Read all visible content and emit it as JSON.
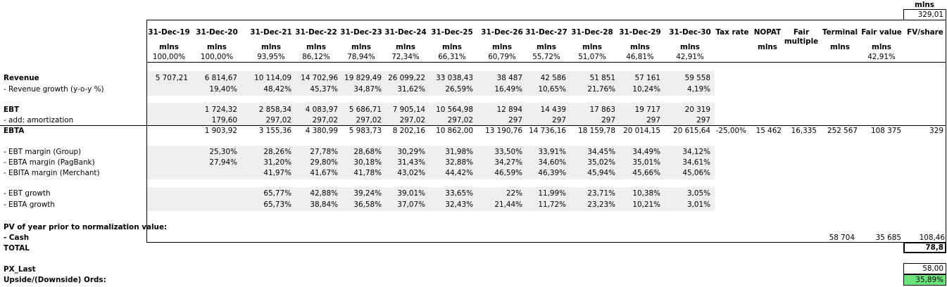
{
  "top": {
    "unit": "mlns",
    "value": "329,01"
  },
  "columns": [
    {
      "date": "31-Dec-19",
      "unit": "mlns",
      "pct": "100,00%"
    },
    {
      "date": "31-Dec-20",
      "unit": "mlns",
      "pct": "100,00%"
    },
    {
      "date": "31-Dec-21",
      "unit": "mlns",
      "pct": "93,95%"
    },
    {
      "date": "31-Dec-22",
      "unit": "mlns",
      "pct": "86,12%"
    },
    {
      "date": "31-Dec-23",
      "unit": "mlns",
      "pct": "78,94%"
    },
    {
      "date": "31-Dec-24",
      "unit": "mlns",
      "pct": "72,34%"
    },
    {
      "date": "31-Dec-25",
      "unit": "mlns",
      "pct": "66,31%"
    },
    {
      "date": "31-Dec-26",
      "unit": "mlns",
      "pct": "60,79%"
    },
    {
      "date": "31-Dec-27",
      "unit": "mlns",
      "pct": "55,72%"
    },
    {
      "date": "31-Dec-28",
      "unit": "mlns",
      "pct": "51,07%"
    },
    {
      "date": "31-Dec-29",
      "unit": "mlns",
      "pct": "46,81%"
    },
    {
      "date": "31-Dec-30",
      "unit": "mlns",
      "pct": "42,91%"
    }
  ],
  "extra_headers": {
    "tax_rate": "Tax rate",
    "nopat": "NOPAT",
    "nopat_unit": "mlns",
    "fair_multiple_1": "Fair",
    "fair_multiple_2": "multiple",
    "terminal": "Terminal",
    "terminal_unit": "mlns",
    "fair_value": "Fair value",
    "fair_value_unit": "mlns",
    "fair_value_pct": "42,91%",
    "fv_share": "FV/share"
  },
  "rows": {
    "revenue": {
      "label": "Revenue",
      "values": [
        "5 707,21",
        "6 814,67",
        "10 114,09",
        "14 702,96",
        "19 829,49",
        "26 099,22",
        "33 038,43",
        "38 487",
        "42 586",
        "51 851",
        "57 161",
        "59 558"
      ]
    },
    "revenue_growth": {
      "label": "- Revenue growth (y-o-y %)",
      "values": [
        "",
        "19,40%",
        "48,42%",
        "45,37%",
        "34,87%",
        "31,62%",
        "26,59%",
        "16,49%",
        "10,65%",
        "21,76%",
        "10,24%",
        "4,19%"
      ]
    },
    "ebt": {
      "label": "EBT",
      "values": [
        "",
        "1 724,32",
        "2 858,34",
        "4 083,97",
        "5 686,71",
        "7 905,14",
        "10 564,98",
        "12 894",
        "14 439",
        "17 863",
        "19 717",
        "20 319"
      ]
    },
    "amortization": {
      "label": "- add: amortization",
      "values": [
        "",
        "179,60",
        "297,02",
        "297,02",
        "297,02",
        "297,02",
        "297,02",
        "297",
        "297",
        "297",
        "297",
        "297"
      ]
    },
    "ebta": {
      "label": "EBTA",
      "values": [
        "",
        "1 903,92",
        "3 155,36",
        "4 380,99",
        "5 983,73",
        "8 202,16",
        "10 862,00",
        "13 190,76",
        "14 736,16",
        "18 159,78",
        "20 014,15",
        "20 615,64"
      ],
      "tax_rate": "-25,00%",
      "nopat": "15 462",
      "fair_multiple": "16,335",
      "terminal": "252 567",
      "fair_value": "108 375",
      "fv_share": "329"
    },
    "ebt_margin_group": {
      "label": "- EBT margin (Group)",
      "values": [
        "",
        "25,30%",
        "28,26%",
        "27,78%",
        "28,68%",
        "30,29%",
        "31,98%",
        "33,50%",
        "33,91%",
        "34,45%",
        "34,49%",
        "34,12%"
      ]
    },
    "ebta_margin_pagbank": {
      "label": "- EBTA margin (PagBank)",
      "values": [
        "",
        "27,94%",
        "31,20%",
        "29,80%",
        "30,18%",
        "31,43%",
        "32,88%",
        "34,27%",
        "34,60%",
        "35,02%",
        "35,01%",
        "34,61%"
      ]
    },
    "ebita_margin_merchant": {
      "label": "- EBITA margin (Merchant)",
      "values": [
        "",
        "",
        "41,97%",
        "41,67%",
        "41,78%",
        "43,02%",
        "44,42%",
        "46,59%",
        "46,39%",
        "45,94%",
        "45,66%",
        "45,06%"
      ]
    },
    "ebt_growth": {
      "label": "- EBT growth",
      "values": [
        "",
        "",
        "65,77%",
        "42,88%",
        "39,24%",
        "39,01%",
        "33,65%",
        "22%",
        "11,99%",
        "23,71%",
        "10,38%",
        "3,05%"
      ]
    },
    "ebta_growth": {
      "label": "- EBTA growth",
      "values": [
        "",
        "",
        "65,73%",
        "38,84%",
        "36,58%",
        "37,07%",
        "32,43%",
        "21,44%",
        "11,72%",
        "23,23%",
        "10,21%",
        "3,01%"
      ]
    }
  },
  "pv": {
    "label": "PV of year prior to normalization value:"
  },
  "cash": {
    "label": "- Cash",
    "terminal": "58 704",
    "fair_value": "35 685",
    "fv_share": "108,46"
  },
  "total": {
    "label": "TOTAL",
    "value": "78,8"
  },
  "px_last": {
    "label": "PX_Last",
    "value": "58,00"
  },
  "upside": {
    "label": "Upside/(Downside) Ords:",
    "value": "35,89%"
  },
  "colors": {
    "upside_fill": "#6be37b",
    "shade": "#efefef"
  }
}
